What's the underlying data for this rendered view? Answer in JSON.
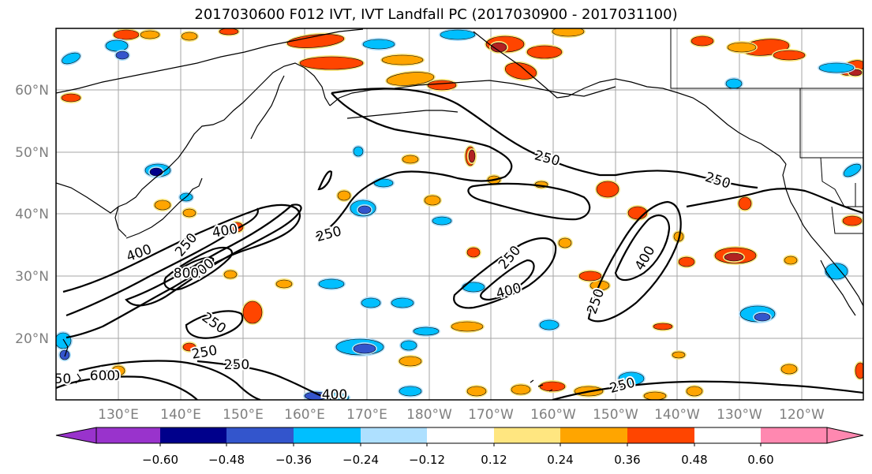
{
  "title": "2017030600 F012 IVT, IVT Landfall PC (2017030900 - 2017031100)",
  "latitude_labels": [
    "20°N",
    "30°N",
    "40°N",
    "50°N",
    "60°N"
  ],
  "longitude_labels": [
    "130°E",
    "140°E",
    "150°E",
    "160°E",
    "170°E",
    "180°W",
    "170°W",
    "160°W",
    "150°W",
    "140°W",
    "130°W",
    "120°W"
  ],
  "contour_labels": [
    "250",
    "250",
    "250",
    "250",
    "250",
    "250",
    "250",
    "250",
    "250",
    "250",
    "250",
    "400",
    "400",
    "400",
    "400",
    "400",
    "400",
    "400",
    "600",
    "800"
  ],
  "colorbar": {
    "ticks": [
      "−0.60",
      "−0.48",
      "−0.36",
      "−0.24",
      "−0.12",
      "0.12",
      "0.24",
      "0.36",
      "0.48",
      "0.60"
    ],
    "colors": [
      "#9933cc",
      "#00008b",
      "#3355cc",
      "#00bfff",
      "#aee0ff",
      "#ffffff",
      "#ffe680",
      "#ffa500",
      "#ff4500",
      "#b22222",
      "#ff88b0"
    ]
  },
  "colors": {
    "grid": "#999999",
    "coast": "#000000",
    "contour": "#000000"
  }
}
